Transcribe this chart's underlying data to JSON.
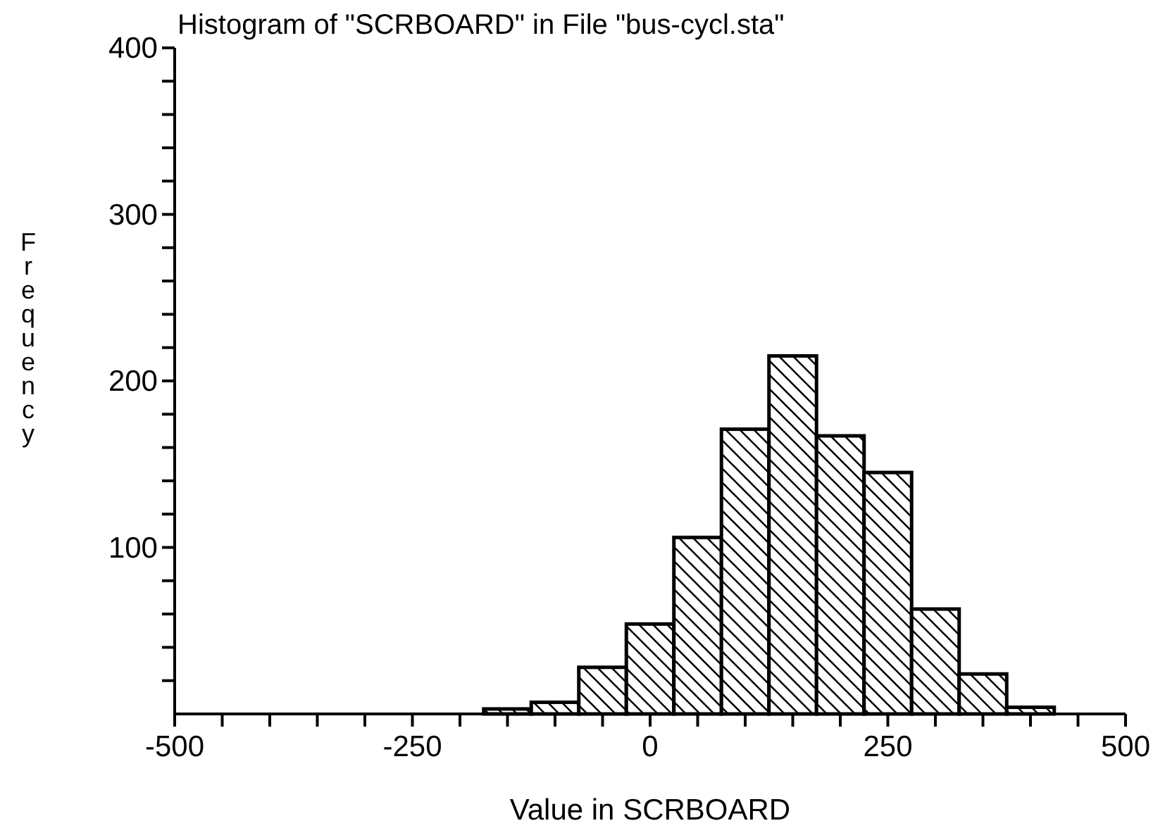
{
  "chart_data": {
    "type": "histogram",
    "title": "Histogram of \"SCRBOARD\" in File \"bus-cycl.sta\"",
    "xlabel": "Value in SCRBOARD",
    "ylabel": "Frequency",
    "bins": [
      -175,
      -125,
      -75,
      -25,
      25,
      75,
      125,
      175,
      225,
      275,
      325,
      375,
      425
    ],
    "values": [
      3,
      7,
      28,
      54,
      106,
      171,
      215,
      167,
      145,
      63,
      24,
      4
    ],
    "color": "#000000",
    "xlim": [
      -500,
      500
    ],
    "xticks": [
      -500,
      {
        "value": -450,
        "label": null
      },
      {
        "value": -400,
        "label": null
      },
      {
        "value": -350,
        "label": null
      },
      {
        "value": -300,
        "label": null
      },
      -250,
      {
        "value": -200,
        "label": null
      },
      {
        "value": -150,
        "label": null
      },
      {
        "value": -100,
        "label": null
      },
      {
        "value": -50,
        "label": null
      },
      0,
      {
        "value": 50,
        "label": null
      },
      {
        "value": 100,
        "label": null
      },
      {
        "value": 150,
        "label": null
      },
      {
        "value": 200,
        "label": null
      },
      250,
      {
        "value": 300,
        "label": null
      },
      {
        "value": 350,
        "label": null
      },
      {
        "value": 400,
        "label": null
      },
      {
        "value": 450,
        "label": null
      },
      500
    ],
    "ylim": [
      0,
      400
    ],
    "yticks": [
      {
        "value": 20,
        "label": null
      },
      {
        "value": 40,
        "label": null
      },
      {
        "value": 60,
        "label": null
      },
      {
        "value": 80,
        "label": null
      },
      100,
      {
        "value": 120,
        "label": null
      },
      {
        "value": 140,
        "label": null
      },
      {
        "value": 160,
        "label": null
      },
      {
        "value": 180,
        "label": null
      },
      200,
      {
        "value": 220,
        "label": null
      },
      {
        "value": 240,
        "label": null
      },
      {
        "value": 260,
        "label": null
      },
      {
        "value": 280,
        "label": null
      },
      300,
      {
        "value": 320,
        "label": null
      },
      {
        "value": 340,
        "label": null
      },
      {
        "value": 360,
        "label": null
      },
      {
        "value": 380,
        "label": null
      },
      400
    ],
    "grid": false
  }
}
